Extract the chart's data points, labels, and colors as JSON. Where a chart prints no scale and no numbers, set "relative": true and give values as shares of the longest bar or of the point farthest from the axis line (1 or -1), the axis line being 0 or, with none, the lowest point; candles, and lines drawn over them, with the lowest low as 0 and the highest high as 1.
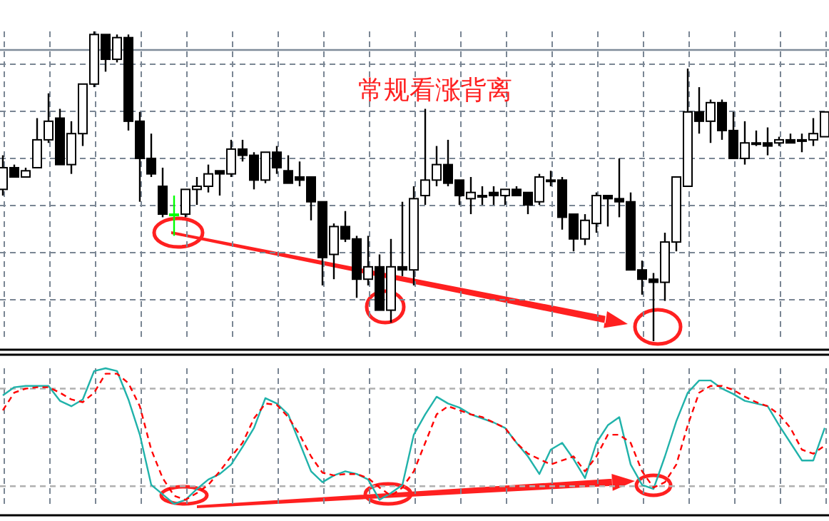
{
  "chart_data": [
    {
      "type": "candlestick",
      "title": "常规看涨背离",
      "relative": true,
      "grid": true,
      "categories": [
        null,
        null,
        null,
        null,
        null,
        null,
        null,
        null,
        null,
        null,
        null,
        null,
        null,
        null,
        null,
        null,
        null,
        null,
        null,
        null,
        null,
        null,
        null,
        null,
        null,
        null,
        null,
        null,
        null,
        null,
        null,
        null,
        null,
        null,
        null,
        null,
        null,
        null,
        null,
        null,
        null,
        null,
        null,
        null,
        null,
        null,
        null,
        null,
        null,
        null,
        null,
        null,
        null,
        null,
        null,
        null,
        null,
        null,
        null,
        null,
        null,
        null,
        null,
        null,
        null,
        null,
        null,
        null,
        null,
        null,
        null,
        null,
        null
      ],
      "ohlc": [
        [
          0.49,
          0.6,
          0.47,
          0.56
        ],
        [
          0.56,
          0.57,
          0.53,
          0.53
        ],
        [
          0.53,
          0.56,
          0.53,
          0.55
        ],
        [
          0.56,
          0.72,
          0.56,
          0.65
        ],
        [
          0.65,
          0.8,
          0.64,
          0.71
        ],
        [
          0.72,
          0.75,
          0.57,
          0.57
        ],
        [
          0.57,
          0.71,
          0.54,
          0.67
        ],
        [
          0.67,
          0.83,
          0.63,
          0.83
        ],
        [
          0.83,
          1,
          0.82,
          0.99
        ],
        [
          0.99,
          0.99,
          0.87,
          0.91
        ],
        [
          0.91,
          0.99,
          0.9,
          0.98
        ],
        [
          0.98,
          0.99,
          0.68,
          0.71
        ],
        [
          0.71,
          0.74,
          0.45,
          0.59
        ],
        [
          0.59,
          0.67,
          0.53,
          0.54
        ],
        [
          0.5,
          0.56,
          0.4,
          0.41
        ],
        [
          0.41,
          0.47,
          0.34,
          0.41
        ],
        [
          0.41,
          0.49,
          0.4,
          0.49
        ],
        [
          0.49,
          0.53,
          0.44,
          0.5
        ],
        [
          0.5,
          0.57,
          0.48,
          0.54
        ],
        [
          0.55,
          0.55,
          0.47,
          0.54
        ],
        [
          0.54,
          0.65,
          0.53,
          0.62
        ],
        [
          0.62,
          0.65,
          0.58,
          0.6
        ],
        [
          0.6,
          0.61,
          0.49,
          0.52
        ],
        [
          0.52,
          0.61,
          0.51,
          0.61
        ],
        [
          0.61,
          0.63,
          0.54,
          0.56
        ],
        [
          0.55,
          0.6,
          0.51,
          0.51
        ],
        [
          0.53,
          0.58,
          0.5,
          0.52
        ],
        [
          0.53,
          0.53,
          0.39,
          0.45
        ],
        [
          0.45,
          0.45,
          0.18,
          0.27
        ],
        [
          0.28,
          0.38,
          0.2,
          0.37
        ],
        [
          0.37,
          0.42,
          0.32,
          0.33
        ],
        [
          0.33,
          0.34,
          0.14,
          0.2
        ],
        [
          0.2,
          0.34,
          0.18,
          0.24
        ],
        [
          0.24,
          0.28,
          0.1,
          0.1
        ],
        [
          0.1,
          0.33,
          0.06,
          0.24
        ],
        [
          0.24,
          0.45,
          0.21,
          0.23
        ],
        [
          0.23,
          0.5,
          0.18,
          0.46
        ],
        [
          0.47,
          0.75,
          0.44,
          0.52
        ],
        [
          0.52,
          0.63,
          0.5,
          0.57
        ],
        [
          0.57,
          0.65,
          0.5,
          0.51
        ],
        [
          0.52,
          0.52,
          0.44,
          0.47
        ],
        [
          0.46,
          0.53,
          0.41,
          0.48
        ],
        [
          0.47,
          0.5,
          0.44,
          0.47
        ],
        [
          0.48,
          0.5,
          0.44,
          0.47
        ],
        [
          0.47,
          0.49,
          0.44,
          0.49
        ],
        [
          0.49,
          0.5,
          0.47,
          0.47
        ],
        [
          0.48,
          0.48,
          0.41,
          0.44
        ],
        [
          0.45,
          0.54,
          0.44,
          0.53
        ],
        [
          0.52,
          0.55,
          0.5,
          0.52
        ],
        [
          0.52,
          0.53,
          0.36,
          0.4
        ],
        [
          0.41,
          0.41,
          0.29,
          0.33
        ],
        [
          0.33,
          0.41,
          0.31,
          0.39
        ],
        [
          0.38,
          0.48,
          0.35,
          0.47
        ],
        [
          0.47,
          0.47,
          0.37,
          0.46
        ],
        [
          0.46,
          0.59,
          0.4,
          0.45
        ],
        [
          0.45,
          0.48,
          0.23,
          0.23
        ],
        [
          0.23,
          0.26,
          0.15,
          0.2
        ],
        [
          0.2,
          0.22,
          0,
          0.19
        ],
        [
          0.19,
          0.35,
          0.13,
          0.32
        ],
        [
          0.32,
          0.53,
          0.29,
          0.53
        ],
        [
          0.5,
          0.88,
          0.5,
          0.74
        ],
        [
          0.74,
          0.82,
          0.67,
          0.71
        ],
        [
          0.71,
          0.78,
          0.64,
          0.77
        ],
        [
          0.77,
          0.78,
          0.65,
          0.68
        ],
        [
          0.68,
          0.74,
          0.59,
          0.59
        ],
        [
          0.59,
          0.71,
          0.57,
          0.64
        ],
        [
          0.64,
          0.68,
          0.63,
          0.64
        ],
        [
          0.64,
          0.69,
          0.6,
          0.63
        ],
        [
          0.64,
          0.66,
          0.63,
          0.65
        ],
        [
          0.65,
          0.67,
          0.64,
          0.64
        ],
        [
          0.65,
          0.67,
          0.61,
          0.65
        ],
        [
          0.65,
          0.72,
          0.63,
          0.67
        ],
        [
          0.66,
          0.74,
          0.66,
          0.74
        ]
      ],
      "colors": [
        "#ffffff",
        "#000000",
        "#ffffff",
        "#ffffff",
        "#ffffff",
        "#000000",
        "#ffffff",
        "#ffffff",
        "#ffffff",
        "#000000",
        "#ffffff",
        "#000000",
        "#000000",
        "#000000",
        "#000000",
        "#00ff00",
        "#ffffff",
        "#ffffff",
        "#ffffff",
        "#000000",
        "#ffffff",
        "#000000",
        "#000000",
        "#ffffff",
        "#000000",
        "#000000",
        "#000000",
        "#000000",
        "#000000",
        "#ffffff",
        "#000000",
        "#000000",
        "#ffffff",
        "#000000",
        "#ffffff",
        "#000000",
        "#ffffff",
        "#ffffff",
        "#ffffff",
        "#000000",
        "#000000",
        "#ffffff",
        "#000000",
        "#000000",
        "#ffffff",
        "#000000",
        "#000000",
        "#ffffff",
        "#000000",
        "#000000",
        "#000000",
        "#ffffff",
        "#ffffff",
        "#000000",
        "#000000",
        "#000000",
        "#000000",
        "#000000",
        "#ffffff",
        "#ffffff",
        "#ffffff",
        "#000000",
        "#ffffff",
        "#000000",
        "#000000",
        "#ffffff",
        "#000000",
        "#000000",
        "#ffffff",
        "#000000",
        "#000000",
        "#ffffff",
        "#ffffff"
      ],
      "ref_lines": [
        {
          "axis": "y",
          "value": 0.94,
          "color": "#7f8b99",
          "line_style": "solid"
        }
      ]
    },
    {
      "type": "line",
      "relative": true,
      "grid": "x",
      "categories": [
        null,
        null,
        null,
        null,
        null,
        null,
        null,
        null,
        null,
        null,
        null,
        null,
        null,
        null,
        null,
        null,
        null,
        null,
        null,
        null,
        null,
        null,
        null,
        null,
        null,
        null,
        null,
        null,
        null,
        null,
        null,
        null,
        null,
        null,
        null,
        null,
        null,
        null,
        null,
        null,
        null,
        null,
        null,
        null,
        null,
        null,
        null,
        null,
        null,
        null,
        null,
        null,
        null,
        null,
        null,
        null,
        null,
        null,
        null,
        null,
        null,
        null,
        null,
        null,
        null,
        null,
        null,
        null,
        null,
        null,
        null,
        null,
        null
      ],
      "series": [
        {
          "color": "#20b2aa",
          "line_style": "solid",
          "values": [
            0.8,
            0.86,
            0.87,
            0.87,
            0.87,
            0.76,
            0.72,
            0.77,
            0.98,
            1,
            0.98,
            0.77,
            0.51,
            0.14,
            0.07,
            0,
            0.03,
            0.11,
            0.18,
            0.22,
            0.29,
            0.42,
            0.56,
            0.78,
            0.74,
            0.66,
            0.45,
            0.24,
            0.16,
            0.21,
            0.24,
            0.22,
            0.18,
            0.03,
            0.08,
            0.14,
            0.51,
            0.66,
            0.79,
            0.74,
            0.71,
            0.66,
            0.63,
            0.6,
            0.56,
            0.45,
            0.35,
            0.22,
            0.4,
            0.45,
            0.33,
            0.19,
            0.45,
            0.58,
            0.64,
            0.29,
            0.14,
            0.11,
            0.35,
            0.61,
            0.82,
            0.91,
            0.91,
            0.85,
            0.81,
            0.76,
            0.74,
            0.72,
            0.58,
            0.45,
            0.32,
            0.32,
            0.56
          ]
        },
        {
          "color": "#ff0000",
          "line_style": "dashed",
          "values": [
            0.69,
            0.82,
            0.85,
            0.86,
            0.86,
            0.82,
            0.77,
            0.75,
            0.82,
            0.96,
            0.96,
            0.89,
            0.72,
            0.4,
            0.19,
            0.06,
            0.03,
            0.08,
            0.14,
            0.24,
            0.35,
            0.45,
            0.63,
            0.74,
            0.73,
            0.64,
            0.51,
            0.35,
            0.23,
            0.21,
            0.22,
            0.22,
            0.19,
            0.12,
            0.06,
            0.12,
            0.24,
            0.45,
            0.66,
            0.72,
            0.69,
            0.66,
            0.64,
            0.6,
            0.56,
            0.45,
            0.37,
            0.33,
            0.29,
            0.32,
            0.35,
            0.24,
            0.35,
            0.51,
            0.51,
            0.45,
            0.24,
            0.12,
            0.16,
            0.29,
            0.58,
            0.82,
            0.87,
            0.87,
            0.84,
            0.79,
            0.75,
            0.72,
            0.66,
            0.56,
            0.4,
            0.37,
            0.43
          ]
        }
      ],
      "ref_lines": [
        {
          "axis": "y",
          "value": 0.85,
          "color": "#b0b0b0",
          "line_style": "dashed"
        },
        {
          "axis": "y",
          "value": 0.13,
          "color": "#b0b0b0",
          "line_style": "dashed"
        }
      ]
    }
  ]
}
